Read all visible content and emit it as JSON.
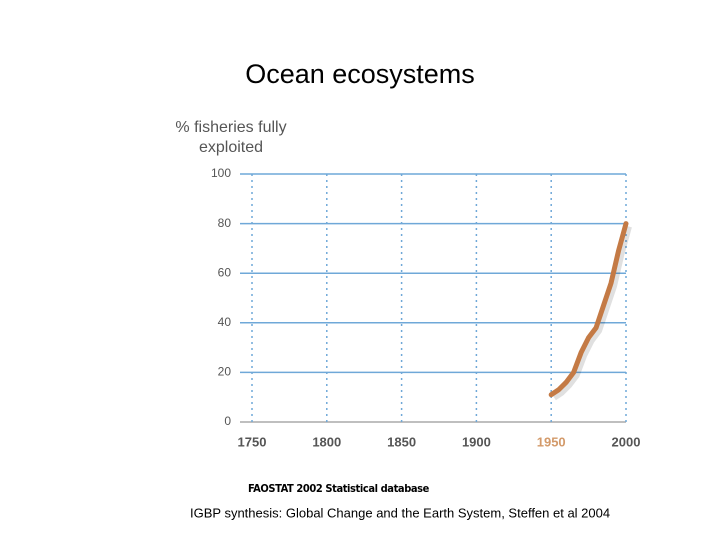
{
  "chart_data": {
    "type": "line",
    "title": "Ocean ecosystems",
    "ylabel_lines": [
      "% fisheries fully",
      "exploited"
    ],
    "x": [
      1950,
      1955,
      1960,
      1965,
      1970,
      1975,
      1980,
      1985,
      1990,
      1995,
      2000
    ],
    "series": [
      {
        "color": "#c47a45",
        "values": [
          11,
          13,
          16,
          20,
          28,
          34,
          38,
          47,
          56,
          69,
          80
        ]
      }
    ],
    "xlim": [
      1750,
      2000
    ],
    "xticks": [
      1750,
      1800,
      1850,
      1900,
      1950,
      2000
    ],
    "xtick_colors": [
      "#555555",
      "#555555",
      "#555555",
      "#555555",
      "#d39a6a",
      "#555555"
    ],
    "ylim": [
      0,
      100
    ],
    "yticks": [
      0,
      20,
      40,
      60,
      80,
      100
    ],
    "grid": true,
    "grid_color": "#6fa8d8"
  },
  "sources": [
    "FAOSTAT 2002 Statistical database",
    "IGBP synthesis: Global Change and the Earth System, Steffen et al 2004"
  ]
}
